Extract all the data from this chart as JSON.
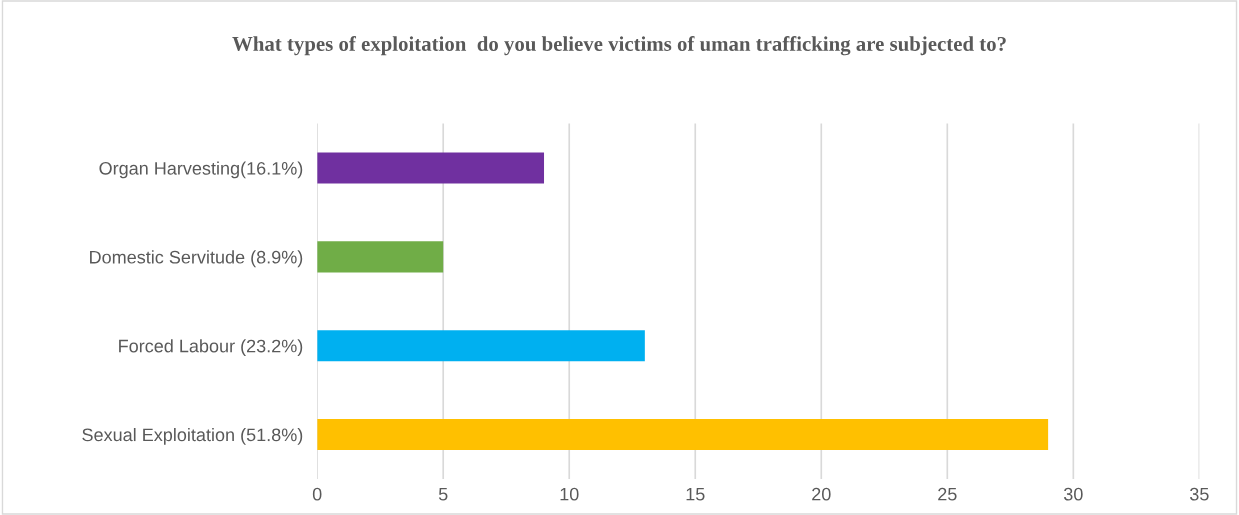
{
  "chart_data": {
    "type": "bar",
    "orientation": "horizontal",
    "title": "What types of exploitation  do you believe victims of uman trafficking are subjected to?",
    "categories": [
      "Organ Harvesting(16.1%)",
      "Domestic Servitude (8.9%)",
      "Forced Labour (23.2%)",
      "Sexual Exploitation (51.8%)"
    ],
    "values": [
      9,
      5,
      13,
      29
    ],
    "colors": [
      "#7030a0",
      "#70ad47",
      "#00b0f0",
      "#ffc000"
    ],
    "xlim": [
      0,
      35
    ],
    "xticks": [
      0,
      5,
      10,
      15,
      20,
      25,
      30,
      35
    ],
    "grid": "x"
  }
}
